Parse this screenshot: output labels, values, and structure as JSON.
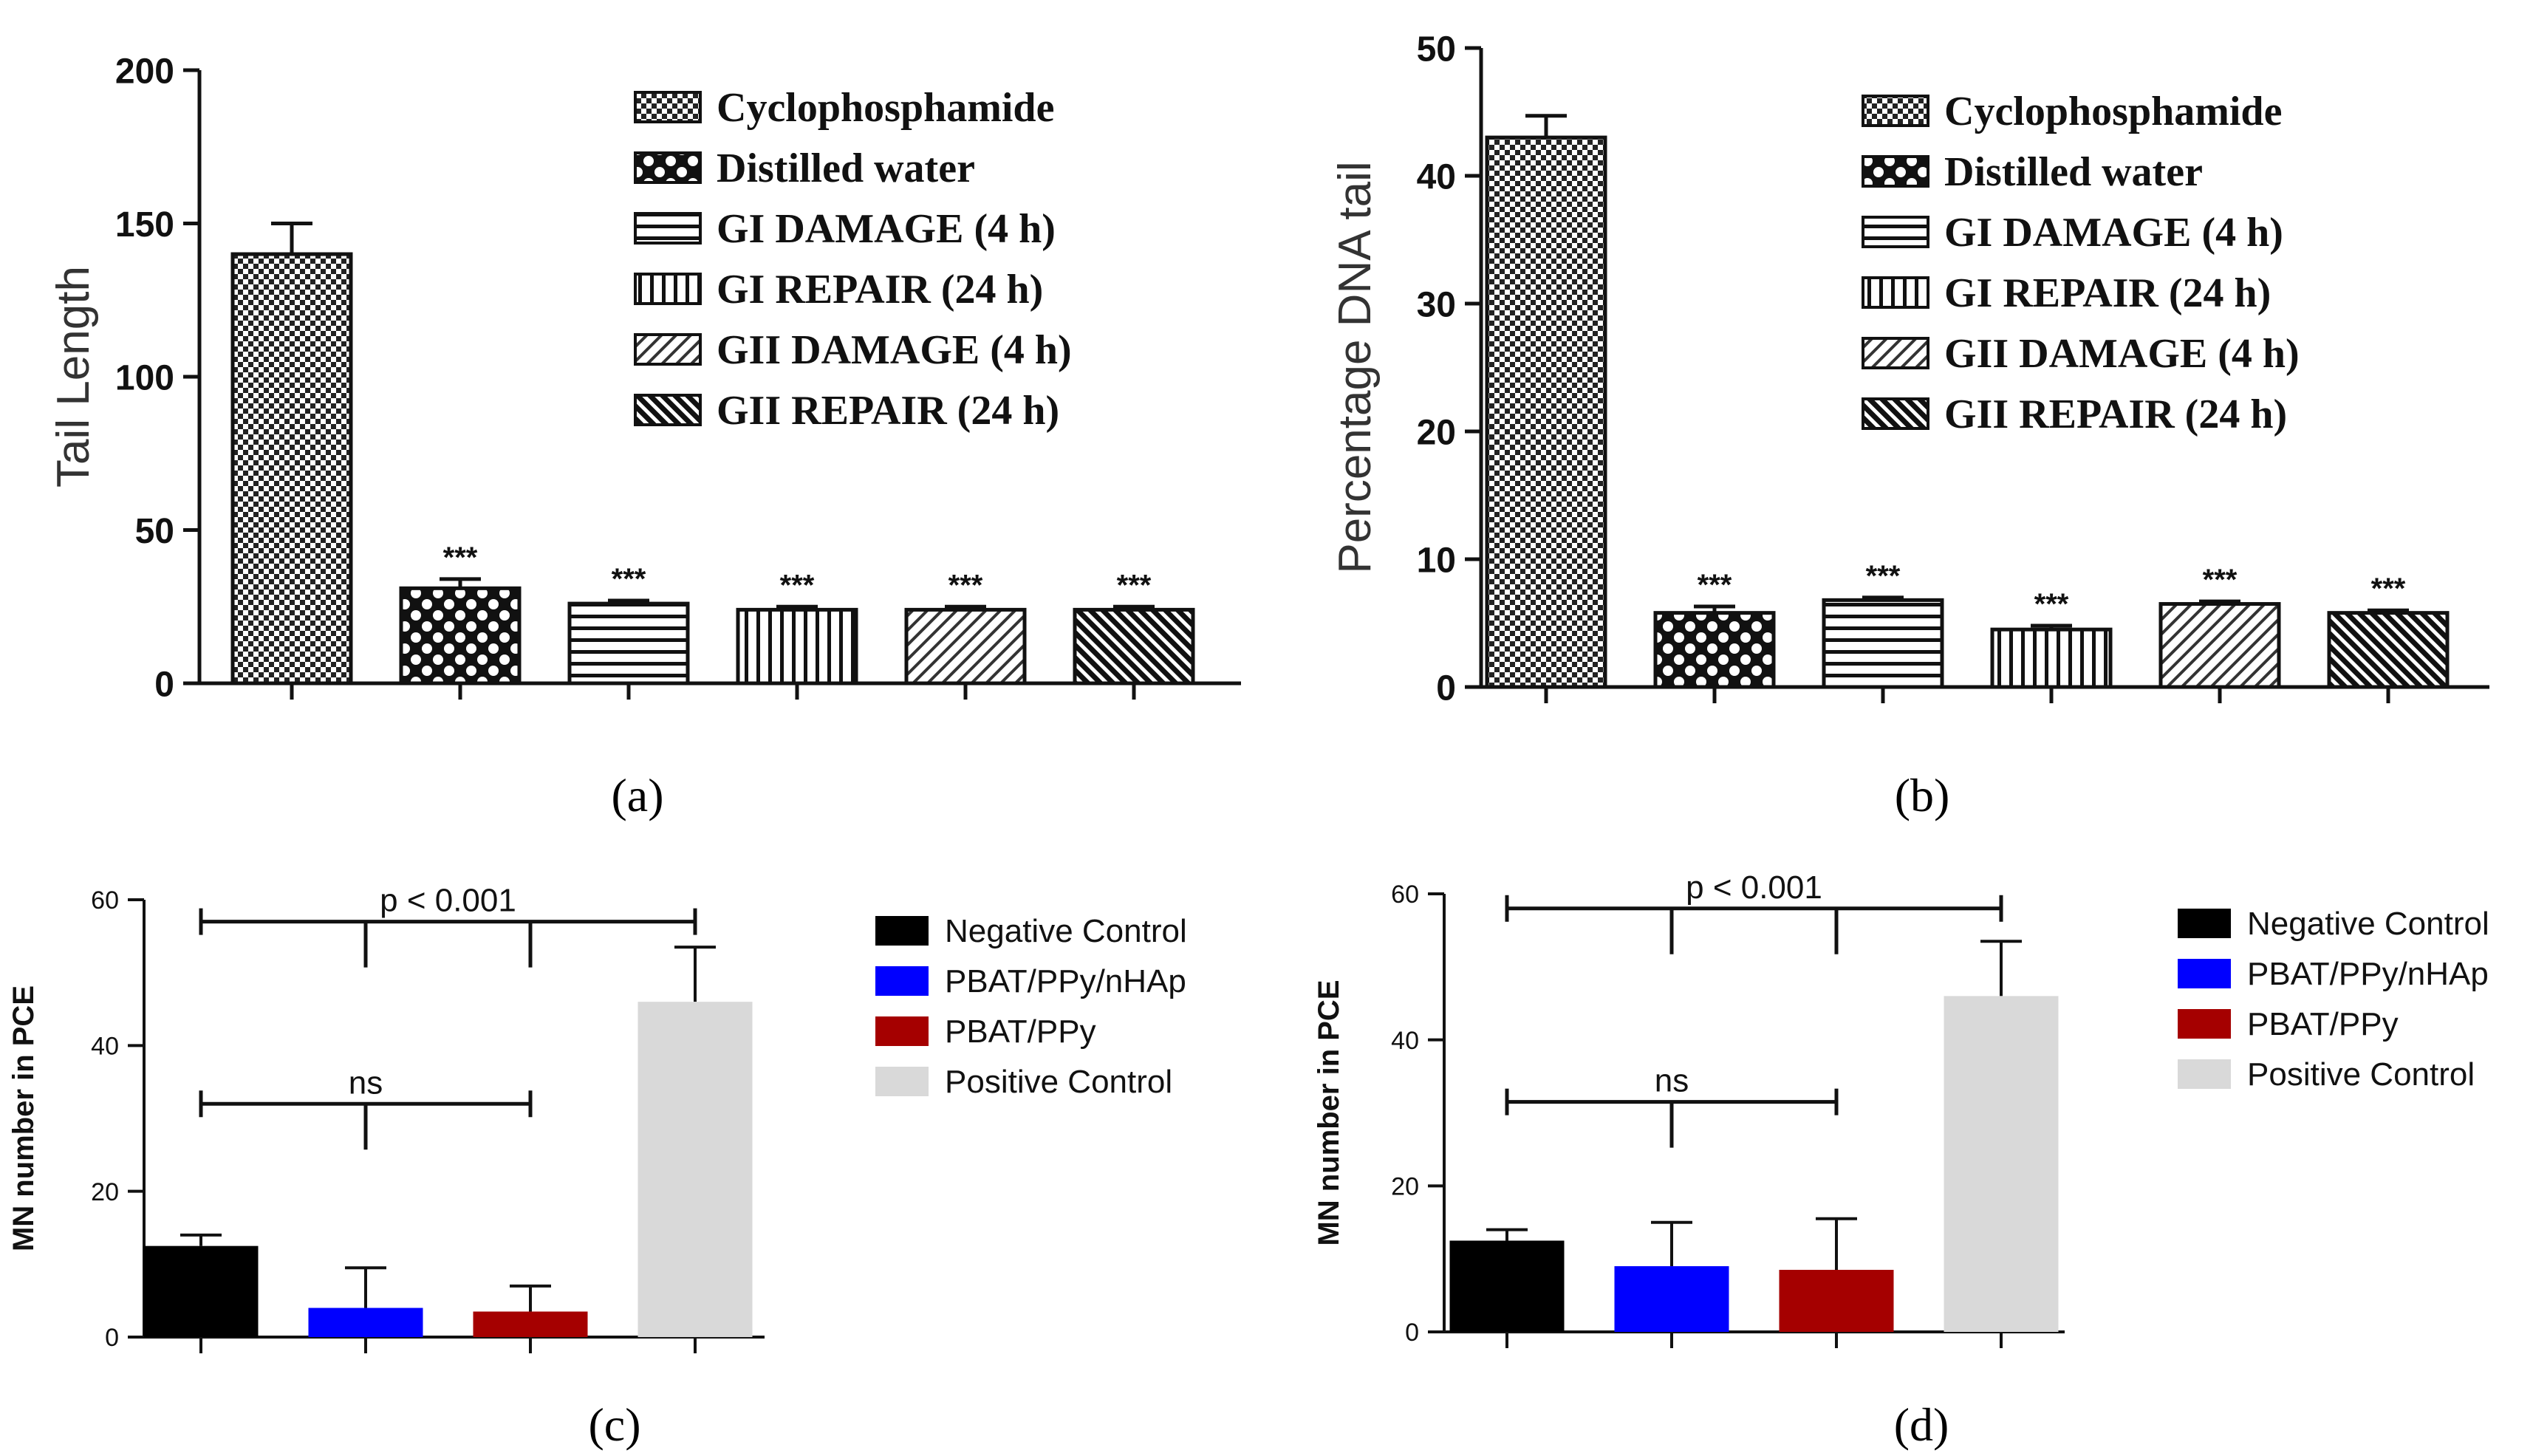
{
  "chart_data": [
    {
      "panel": "(a)",
      "type": "bar",
      "ylabel": "Tail Length",
      "ylim": [
        0,
        200
      ],
      "yticks": [
        0,
        50,
        100,
        150,
        200
      ],
      "categories": [
        "Cyclophosphamide",
        "Distilled water",
        "GI DAMAGE (4 h)",
        "GI REPAIR (24 h)",
        "GII DAMAGE (4 h)",
        "GII REPAIR (24 h)"
      ],
      "values": [
        140,
        31,
        26,
        24,
        24,
        24
      ],
      "errors": [
        10,
        3,
        1,
        1,
        1,
        1
      ],
      "significance": [
        "",
        "***",
        "***",
        "***",
        "***",
        "***"
      ],
      "patterns": [
        "pat-checker",
        "pat-dots",
        "pat-hlines",
        "pat-vlines",
        "pat-diag-light",
        "pat-diag-dark"
      ],
      "legend": [
        "Cyclophosphamide",
        "Distilled water",
        "GI DAMAGE (4 h)",
        "GI REPAIR (24 h)",
        "GII DAMAGE (4 h)",
        "GII REPAIR (24 h)"
      ]
    },
    {
      "panel": "(b)",
      "type": "bar",
      "ylabel": "Percentage DNA tail",
      "ylim": [
        0,
        50
      ],
      "yticks": [
        0,
        10,
        20,
        30,
        40,
        50
      ],
      "categories": [
        "Cyclophosphamide",
        "Distilled water",
        "GI DAMAGE (4 h)",
        "GI REPAIR (24 h)",
        "GII DAMAGE (4 h)",
        "GII REPAIR (24 h)"
      ],
      "values": [
        43,
        5.8,
        6.8,
        4.5,
        6.5,
        5.8
      ],
      "errors": [
        1.7,
        0.5,
        0.2,
        0.3,
        0.2,
        0.2
      ],
      "significance": [
        "",
        "***",
        "***",
        "***",
        "***",
        "***"
      ],
      "patterns": [
        "pat-checker",
        "pat-dots",
        "pat-hlines",
        "pat-vlines",
        "pat-diag-light",
        "pat-diag-dark"
      ],
      "legend": [
        "Cyclophosphamide",
        "Distilled water",
        "GI DAMAGE (4 h)",
        "GI REPAIR (24 h)",
        "GII DAMAGE (4 h)",
        "GII REPAIR (24 h)"
      ]
    },
    {
      "panel": "(c)",
      "type": "bar",
      "ylabel": "MN number in PCE",
      "ylim": [
        0,
        60
      ],
      "yticks": [
        0,
        20,
        40,
        60
      ],
      "categories": [
        "Negative Control",
        "PBAT/PPy/nHAp",
        "PBAT/PPy",
        "Positive Control"
      ],
      "values": [
        12.5,
        4,
        3.5,
        46
      ],
      "errors": [
        1.5,
        5.5,
        3.5,
        7.5
      ],
      "colors": [
        "#000000",
        "#0000ff",
        "#a50000",
        "#d9d9d9"
      ],
      "legend": [
        "Negative Control",
        "PBAT/PPy/nHAp",
        "PBAT/PPy",
        "Positive Control"
      ],
      "annotations": [
        {
          "text": "p < 0.001",
          "from": 0,
          "to": 3,
          "level": 57,
          "drops": [
            1,
            2
          ]
        },
        {
          "text": "ns",
          "from": 0,
          "to": 2,
          "level": 32,
          "drops": [
            1
          ]
        }
      ]
    },
    {
      "panel": "(d)",
      "type": "bar",
      "ylabel": "MN number in PCE",
      "ylim": [
        0,
        60
      ],
      "yticks": [
        0,
        20,
        40,
        60
      ],
      "categories": [
        "Negative Control",
        "PBAT/PPy/nHAp",
        "PBAT/PPy",
        "Positive Control"
      ],
      "values": [
        12.5,
        9,
        8.5,
        46
      ],
      "errors": [
        1.5,
        6,
        7,
        7.5
      ],
      "colors": [
        "#000000",
        "#0000ff",
        "#a50000",
        "#d9d9d9"
      ],
      "legend": [
        "Negative Control",
        "PBAT/PPy/nHAp",
        "PBAT/PPy",
        "Positive Control"
      ],
      "annotations": [
        {
          "text": "p < 0.001",
          "from": 0,
          "to": 3,
          "level": 58,
          "drops": [
            1,
            2
          ]
        },
        {
          "text": "ns",
          "from": 0,
          "to": 2,
          "level": 31.5,
          "drops": [
            1
          ]
        }
      ]
    }
  ]
}
